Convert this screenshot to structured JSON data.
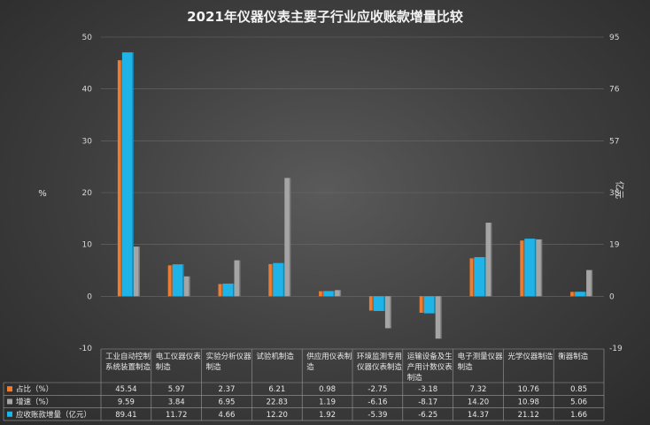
{
  "chart_data": {
    "type": "bar",
    "title": "2021年仪器仪表主要子行业应收账款增量比较",
    "ylabel_left": "%",
    "ylabel_right": "亿元",
    "ylim_left": [
      -10,
      50
    ],
    "yticks_left": [
      -10,
      0,
      10,
      20,
      30,
      40,
      50
    ],
    "ylim_right": [
      -19,
      95
    ],
    "yticks_right": [
      -19,
      0,
      19,
      38,
      57,
      76,
      95
    ],
    "categories": [
      "工业自动控制系统装置制造",
      "电工仪器仪表制造",
      "实验分析仪器制造",
      "试验机制造",
      "供应用仪表制造",
      "环境监测专用仪器仪表制造",
      "运输设备及生产用计数仪表制造",
      "电子测量仪器制造",
      "光学仪器制造",
      "衡器制造"
    ],
    "series": [
      {
        "name": "占比（%）",
        "axis": "left",
        "color": "#ed7d31",
        "values": [
          45.54,
          5.97,
          2.37,
          6.21,
          0.98,
          -2.75,
          -3.18,
          7.32,
          10.76,
          0.85
        ],
        "labels": [
          "45.54",
          "5.97",
          "2.37",
          "6.21",
          "0.98",
          "-2.75",
          "-3.18",
          "7.32",
          "10.76",
          "0.85"
        ]
      },
      {
        "name": "增速（%）",
        "axis": "left",
        "color": "#a5a5a5",
        "values": [
          9.59,
          3.84,
          6.95,
          22.83,
          1.19,
          -6.16,
          -8.17,
          14.2,
          10.98,
          5.06
        ],
        "labels": [
          "9.59",
          "3.84",
          "6.95",
          "22.83",
          "1.19",
          "-6.16",
          "-8.17",
          "14.20",
          "10.98",
          "5.06"
        ]
      },
      {
        "name": "应收账款增量（亿元）",
        "axis": "right",
        "color": "#1fb3e8",
        "values": [
          89.41,
          11.72,
          4.66,
          12.2,
          1.92,
          -5.39,
          -6.25,
          14.37,
          21.12,
          1.66
        ],
        "labels": [
          "89.41",
          "11.72",
          "4.66",
          "12.20",
          "1.92",
          "-5.39",
          "-6.25",
          "14.37",
          "21.12",
          "1.66"
        ]
      }
    ],
    "bar_order": [
      0,
      2,
      1
    ]
  }
}
